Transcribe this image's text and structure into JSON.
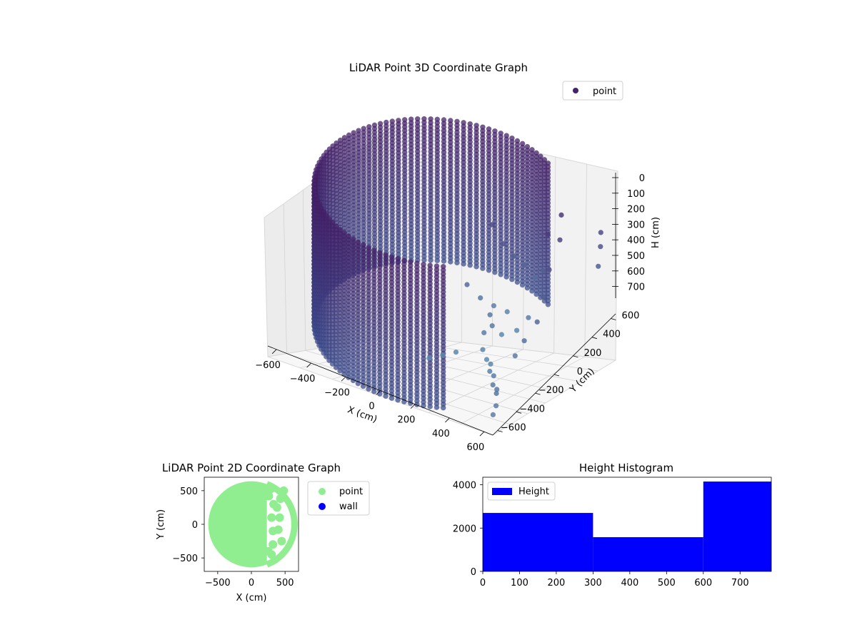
{
  "figure": {
    "colors": {
      "scatter_3d_dark": "#46226a",
      "scatter_3d_mid": "#3f4f8f",
      "scatter_3d_light": "#5f93b5",
      "scatter_2d_point": "#90ee90",
      "scatter_2d_wall": "#0000ff",
      "histogram_bar": "#0000ff",
      "pane_face": "#f2f2f2",
      "grid": "#cfcfcf"
    }
  },
  "chart_data": [
    {
      "id": "lidar-3d",
      "type": "scatter",
      "title": "LiDAR Point 3D Coordinate Graph",
      "xlabel": "X (cm)",
      "ylabel": "Y (cm)",
      "zlabel": "H (cm)",
      "xlim": [
        -650,
        650
      ],
      "ylim": [
        -650,
        650
      ],
      "zlim": [
        0,
        780
      ],
      "z_inverted": true,
      "x_ticks": [
        "−600",
        "−400",
        "−200",
        "0",
        "200",
        "400",
        "600"
      ],
      "y_ticks": [
        "−600",
        "−400",
        "−200",
        "0",
        "200",
        "400",
        "600"
      ],
      "z_ticks": [
        "0",
        "100",
        "200",
        "300",
        "400",
        "500",
        "600",
        "700"
      ],
      "legend": [
        {
          "label": "point",
          "color": "#46226a"
        }
      ],
      "legend_loc": "top-right",
      "grid": true,
      "series": [
        {
          "name": "point",
          "wall_radius": 640,
          "wall_angle_range_deg": [
            60,
            300
          ],
          "wall_height_range": [
            0,
            780
          ],
          "points": [
            [
              470,
              420,
              160
            ],
            [
              500,
              350,
              250
            ],
            [
              520,
              200,
              330
            ],
            [
              540,
              100,
              420
            ],
            [
              560,
              0,
              500
            ],
            [
              540,
              -100,
              560
            ],
            [
              520,
              -160,
              620
            ],
            [
              480,
              260,
              180
            ],
            [
              430,
              300,
              420
            ],
            [
              400,
              200,
              640
            ],
            [
              360,
              150,
              700
            ],
            [
              300,
              100,
              720
            ],
            [
              250,
              250,
              690
            ],
            [
              200,
              200,
              650
            ],
            [
              150,
              150,
              600
            ],
            [
              100,
              100,
              520
            ],
            [
              300,
              -100,
              700
            ],
            [
              350,
              -150,
              710
            ],
            [
              400,
              -200,
              690
            ],
            [
              450,
              -300,
              660
            ],
            [
              500,
              -350,
              640
            ],
            [
              550,
              -450,
              620
            ],
            [
              600,
              -500,
              600
            ],
            [
              630,
              -560,
              580
            ],
            [
              300,
              0,
              620
            ],
            [
              280,
              -50,
              640
            ],
            [
              260,
              50,
              600
            ],
            [
              200,
              -200,
              700
            ],
            [
              150,
              -250,
              710
            ],
            [
              100,
              -300,
              720
            ],
            [
              600,
              600,
              300
            ],
            [
              620,
              560,
              350
            ],
            [
              640,
              500,
              420
            ],
            [
              650,
              -600,
              620
            ],
            [
              660,
              -650,
              640
            ],
            [
              200,
              300,
              360
            ],
            [
              250,
              320,
              420
            ],
            [
              300,
              340,
              460
            ],
            [
              350,
              360,
              520
            ],
            [
              120,
              330,
              300
            ]
          ]
        }
      ]
    },
    {
      "id": "lidar-2d",
      "type": "scatter",
      "title": "LiDAR Point 2D Coordinate Graph",
      "xlabel": "X (cm)",
      "ylabel": "Y (cm)",
      "xlim": [
        -700,
        700
      ],
      "ylim": [
        -700,
        700
      ],
      "x_ticks": [
        -500,
        0,
        500
      ],
      "y_ticks": [
        -500,
        0,
        500
      ],
      "x_tick_labels": [
        "−500",
        "0",
        "500"
      ],
      "y_tick_labels": [
        "−500",
        "0",
        "500"
      ],
      "legend": [
        {
          "label": "point",
          "color": "#90ee90"
        },
        {
          "label": "wall",
          "color": "#0000ff"
        }
      ],
      "legend_loc": "outside right",
      "series": [
        {
          "name": "point",
          "disk_radius": 640,
          "cut_x_from": 230
        },
        {
          "name": "point",
          "points": [
            [
              280,
              520
            ],
            [
              330,
              300
            ],
            [
              300,
              100
            ],
            [
              320,
              -100
            ],
            [
              320,
              -300
            ],
            [
              300,
              -450
            ],
            [
              430,
              380
            ],
            [
              420,
              100
            ],
            [
              400,
              -80
            ],
            [
              450,
              -250
            ],
            [
              480,
              500
            ],
            [
              380,
              250
            ],
            [
              260,
              420
            ],
            [
              250,
              -400
            ]
          ]
        }
      ]
    },
    {
      "id": "height-hist",
      "type": "bar",
      "title": "Height Histogram",
      "xlim": [
        0,
        785
      ],
      "ylim": [
        0,
        4350
      ],
      "x_ticks": [
        0,
        100,
        200,
        300,
        400,
        500,
        600,
        700
      ],
      "y_ticks": [
        0,
        2000,
        4000
      ],
      "bins": [
        [
          0,
          300
        ],
        [
          300,
          600
        ],
        [
          600,
          785
        ]
      ],
      "values": [
        2700,
        1580,
        4150
      ],
      "legend": [
        {
          "label": "Height",
          "color": "#0000ff"
        }
      ],
      "legend_loc": "upper left"
    }
  ]
}
